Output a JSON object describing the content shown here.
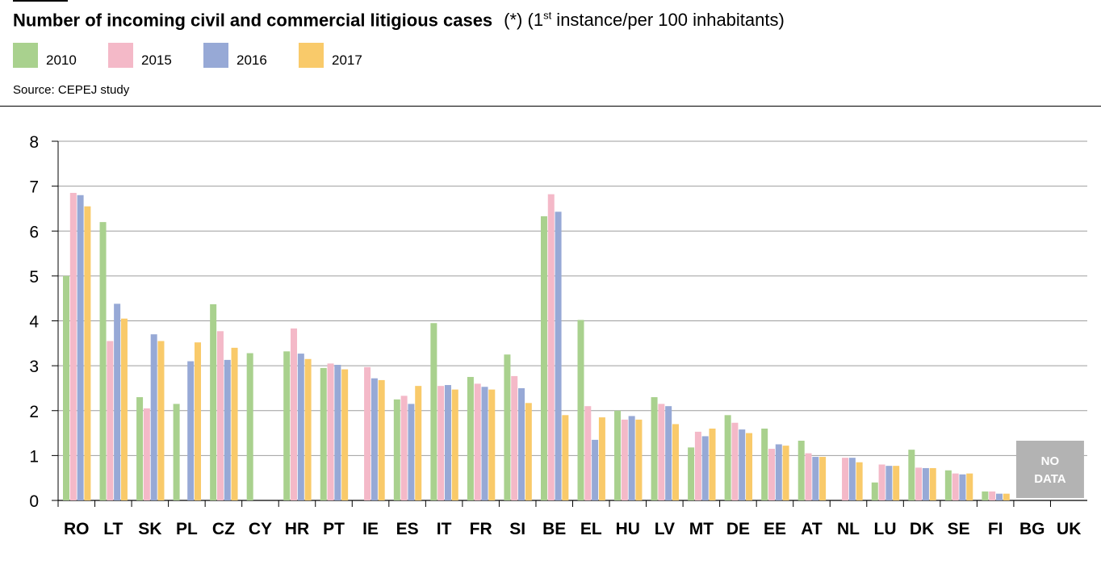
{
  "title": {
    "main": "Number of incoming civil and commercial litigious cases",
    "note_prefix": "(*) (1",
    "note_sup": "st",
    "note_suffix": " instance/per 100 inhabitants)"
  },
  "source": "Source: CEPEJ study",
  "no_data_label": [
    "NO",
    "DATA"
  ],
  "colors": {
    "2010": "#a9d18e",
    "2015": "#f4b9c8",
    "2016": "#97a9d6",
    "2017": "#f9ca6a",
    "no_data_box": "#b3b3b3",
    "grid": "#9e9e9e"
  },
  "chart_data": {
    "type": "bar",
    "categories": [
      "RO",
      "LT",
      "SK",
      "PL",
      "CZ",
      "CY",
      "HR",
      "PT",
      "IE",
      "ES",
      "IT",
      "FR",
      "SI",
      "BE",
      "EL",
      "HU",
      "LV",
      "MT",
      "DE",
      "EE",
      "AT",
      "NL",
      "LU",
      "DK",
      "SE",
      "FI",
      "BG",
      "UK"
    ],
    "series": [
      {
        "name": "2010",
        "values": [
          5.0,
          6.2,
          2.3,
          2.15,
          4.37,
          3.28,
          3.32,
          2.95,
          null,
          2.25,
          3.95,
          2.75,
          3.25,
          6.33,
          4.02,
          2.0,
          2.3,
          1.18,
          1.9,
          1.6,
          1.33,
          null,
          0.4,
          1.13,
          0.67,
          0.2,
          null,
          null
        ]
      },
      {
        "name": "2015",
        "values": [
          6.85,
          3.55,
          2.05,
          null,
          3.77,
          null,
          3.83,
          3.05,
          2.97,
          2.33,
          2.55,
          2.6,
          2.77,
          6.82,
          2.1,
          1.8,
          2.15,
          1.53,
          1.73,
          1.15,
          1.05,
          0.95,
          0.8,
          0.73,
          0.6,
          0.2,
          null,
          null
        ]
      },
      {
        "name": "2016",
        "values": [
          6.8,
          4.38,
          3.7,
          3.1,
          3.13,
          null,
          3.27,
          3.02,
          2.72,
          2.15,
          2.57,
          2.53,
          2.5,
          6.43,
          1.35,
          1.88,
          2.1,
          1.43,
          1.58,
          1.25,
          0.97,
          0.95,
          0.77,
          0.72,
          0.58,
          0.15,
          null,
          null
        ]
      },
      {
        "name": "2017",
        "values": [
          6.55,
          4.05,
          3.55,
          3.52,
          3.4,
          null,
          3.15,
          2.92,
          2.68,
          2.55,
          2.47,
          2.47,
          2.17,
          1.9,
          1.85,
          1.8,
          1.7,
          1.6,
          1.5,
          1.22,
          0.97,
          0.85,
          0.77,
          0.72,
          0.6,
          0.15,
          null,
          null
        ]
      }
    ],
    "no_data_categories": [
      "BG",
      "UK"
    ],
    "ylim": [
      0,
      8
    ],
    "yticks": [
      0,
      1,
      2,
      3,
      4,
      5,
      6,
      7,
      8
    ],
    "grid": true,
    "legend_position": "top-left",
    "xlabel": "",
    "ylabel": ""
  }
}
